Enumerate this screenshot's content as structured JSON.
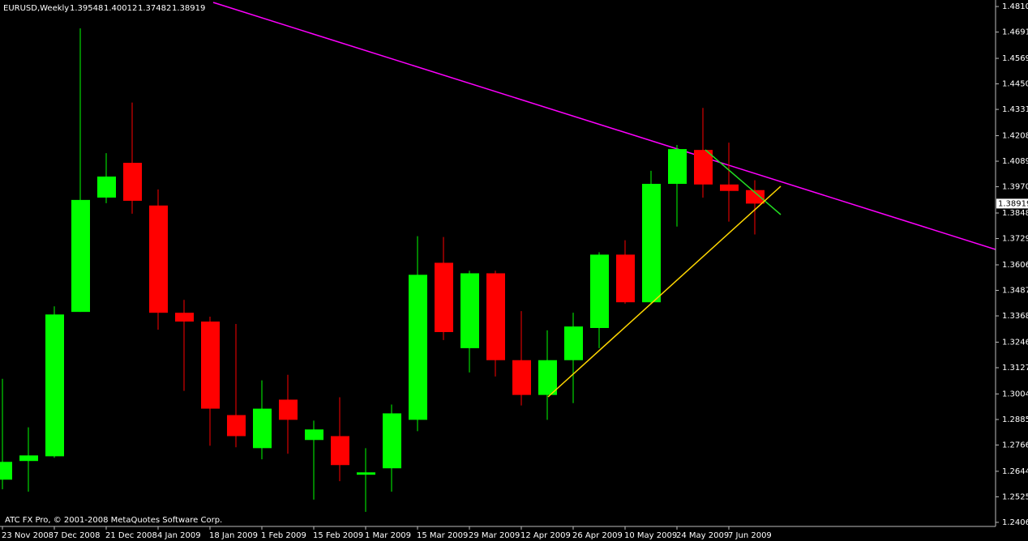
{
  "chart_data": {
    "type": "candlestick",
    "title": "EURUSD,Weekly",
    "footer": "ATC FX Pro, © 2001-2008 MetaQuotes Software Corp.",
    "categories": [
      "23 Nov 2008",
      null,
      "7 Dec 2008",
      null,
      "21 Dec 2008",
      null,
      "4 Jan 2009",
      null,
      "18 Jan 2009",
      null,
      "1 Feb 2009",
      null,
      "15 Feb 2009",
      null,
      "1 Mar 2009",
      null,
      "15 Mar 2009",
      null,
      "29 Mar 2009",
      null,
      "12 Apr 2009",
      null,
      "26 Apr 2009",
      null,
      "10 May 2009",
      null,
      "24 May 2009",
      null,
      "7 Jun 2009",
      null
    ],
    "open": [
      1.2605,
      1.2692,
      1.2714,
      1.3387,
      1.392,
      1.4082,
      1.3883,
      1.3383,
      1.3342,
      1.2906,
      1.2752,
      1.2978,
      1.279,
      1.2808,
      1.2628,
      1.2658,
      1.2884,
      1.3616,
      1.3218,
      1.3567,
      1.3162,
      1.3,
      1.3162,
      1.3312,
      1.3654,
      1.3432,
      1.3984,
      1.4142,
      1.3981,
      1.39548
    ],
    "high": [
      1.3075,
      1.2849,
      1.3413,
      1.4709,
      1.4127,
      1.4363,
      1.3958,
      1.3443,
      1.3365,
      1.3331,
      1.3068,
      1.3094,
      1.288,
      1.2989,
      1.2752,
      1.2955,
      1.374,
      1.3736,
      1.3579,
      1.3579,
      1.3391,
      1.3301,
      1.3383,
      1.3665,
      1.3721,
      1.4045,
      1.4165,
      1.4338,
      1.4176,
      1.40012
    ],
    "low": [
      1.256,
      1.2549,
      1.2707,
      1.3387,
      1.3894,
      1.3845,
      1.3304,
      1.3019,
      1.2763,
      1.2756,
      1.27,
      1.2726,
      1.2512,
      1.2598,
      1.2455,
      1.2549,
      1.2831,
      1.3256,
      1.3105,
      1.3086,
      1.2951,
      1.2884,
      1.2962,
      1.3218,
      1.3425,
      1.3425,
      1.3785,
      1.392,
      1.3808,
      1.37482
    ],
    "close": [
      1.2688,
      1.2718,
      1.3375,
      1.3909,
      1.4018,
      1.3905,
      1.3383,
      1.3342,
      1.2936,
      1.2808,
      1.2936,
      1.2884,
      1.2839,
      1.2673,
      1.2639,
      1.2914,
      1.356,
      1.3293,
      1.3567,
      1.3162,
      1.3,
      1.3162,
      1.3319,
      1.3654,
      1.3432,
      1.3984,
      1.4146,
      1.3981,
      1.3951,
      1.38919
    ],
    "up_color": "#00ff00",
    "down_color": "#ff0000",
    "ylim": [
      1.2387,
      1.4841
    ],
    "yticks": [
      1.48105,
      1.46915,
      {
        "value": 1.4569,
        "label": "1.45690"
      },
      {
        "value": 1.445,
        "label": "1.44500"
      },
      {
        "value": 1.4331,
        "label": "1.43310"
      },
      1.42085,
      1.40895,
      1.39705,
      {
        "value": 1.3848,
        "label": "1.38480"
      },
      {
        "value": 1.3729,
        "label": "1.37290"
      },
      1.36065,
      1.34875,
      1.33685,
      {
        "value": 1.3246,
        "label": "1.32460"
      },
      {
        "value": 1.3127,
        "label": "1.31270"
      },
      1.30045,
      1.28855,
      1.27665,
      {
        "value": 1.2644,
        "label": "1.26440"
      },
      {
        "value": 1.2525,
        "label": "1.25250"
      },
      {
        "value": 1.2406,
        "label": "1.24060"
      }
    ],
    "grid": false
  }
}
